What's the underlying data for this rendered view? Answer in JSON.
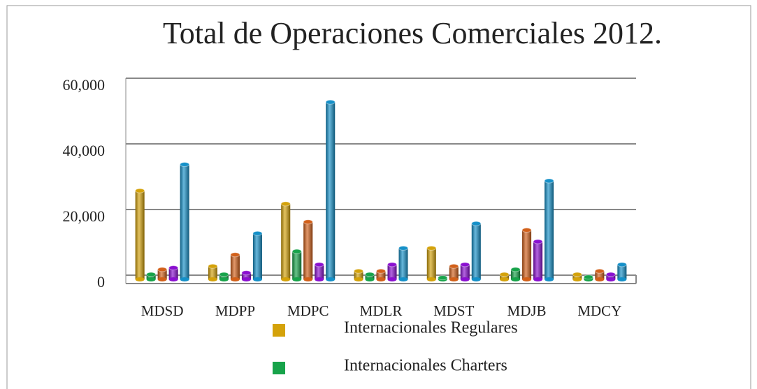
{
  "chart_data": {
    "type": "bar",
    "title": "Total de Operaciones Comerciales 2012.",
    "categories": [
      "MDSD",
      "MDPP",
      "MDPC",
      "MDLR",
      "MDST",
      "MDJB",
      "MDCY"
    ],
    "series": [
      {
        "name": "Internacionales Regulares",
        "color": "#d4a20a",
        "values": [
          27000,
          4000,
          23000,
          2500,
          9500,
          1500,
          1500
        ]
      },
      {
        "name": "Internacionales Charters",
        "color": "#17a34a",
        "values": [
          1500,
          1500,
          8500,
          1500,
          500,
          3000,
          700
        ]
      },
      {
        "color": "#d2601a",
        "values": [
          3000,
          7500,
          17500,
          2500,
          4000,
          15000,
          2500
        ]
      },
      {
        "color": "#8a10d0",
        "values": [
          3500,
          2000,
          4500,
          4500,
          4500,
          11500,
          1500
        ]
      },
      {
        "color": "#1590c8",
        "values": [
          35000,
          14000,
          54000,
          9500,
          17000,
          30000,
          4500
        ]
      }
    ],
    "ylim": [
      0,
      60000
    ],
    "yticks": [
      {
        "value": 0,
        "label": "0"
      },
      {
        "value": 20000,
        "label": "20,000"
      },
      {
        "value": 40000,
        "label": "40,000"
      },
      {
        "value": 60000,
        "label": "60,000"
      }
    ],
    "grid": true
  }
}
